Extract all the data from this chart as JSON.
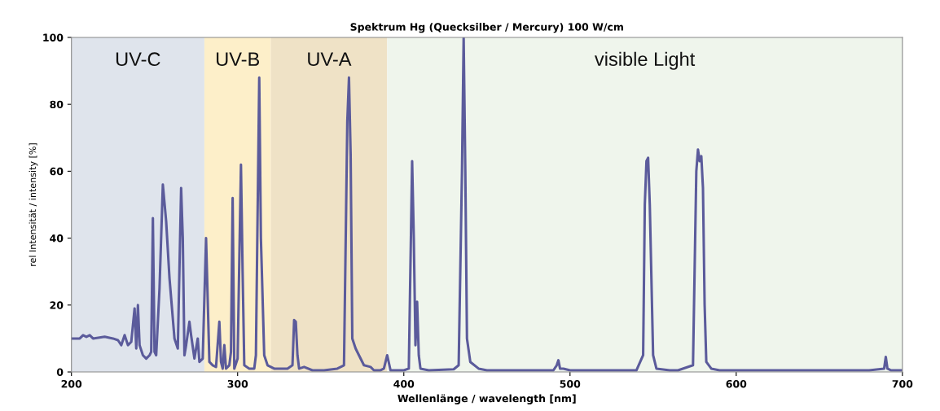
{
  "chart_data": {
    "type": "line",
    "title": "Spektrum Hg (Quecksilber / Mercury) 100 W/cm",
    "xlabel": "Wellenlänge / wavelength [nm]",
    "ylabel": "rel Intensität / intensity [%]",
    "xlim": [
      200,
      700
    ],
    "xticks": [
      200,
      300,
      400,
      500,
      600,
      700
    ],
    "ylim": [
      0,
      100
    ],
    "yticks": [
      0,
      20,
      40,
      60,
      80,
      100
    ],
    "grid": false,
    "legend": false,
    "marker": "none",
    "line_style": "solid",
    "bands": [
      {
        "axis": "x",
        "from": 200,
        "to": 280,
        "label": "UV-C",
        "color": "#dfe4ec"
      },
      {
        "axis": "x",
        "from": 280,
        "to": 320,
        "label": "UV-B",
        "color": "#fdefc9"
      },
      {
        "axis": "x",
        "from": 320,
        "to": 390,
        "label": "UV-A",
        "color": "#efe2c6"
      },
      {
        "axis": "x",
        "from": 390,
        "to": 700,
        "label": "visible Light",
        "color": "#eff5ec"
      }
    ],
    "series": [
      {
        "color": "#5b5b9b",
        "x": [
          200,
          205,
          207,
          209,
          211,
          213,
          220,
          225,
          228,
          230,
          232,
          234,
          236,
          238,
          239,
          240,
          241,
          243,
          245,
          247,
          248,
          249,
          250,
          251,
          253,
          255,
          257,
          259,
          262,
          264,
          266,
          267,
          268,
          269,
          271,
          272,
          274,
          276,
          277,
          279,
          281,
          283,
          285,
          287,
          289,
          290,
          291,
          292,
          293,
          295,
          296,
          297,
          298,
          300,
          302,
          303,
          304,
          307,
          310,
          311,
          313,
          314,
          316,
          318,
          322,
          330,
          333,
          334,
          335,
          336,
          337,
          340,
          345,
          352,
          360,
          364,
          366,
          367,
          368,
          369,
          371,
          373,
          376,
          380,
          382,
          386,
          388,
          390,
          392,
          400,
          403,
          405,
          406,
          407,
          408,
          409,
          410,
          415,
          430,
          433,
          435,
          436,
          437,
          438,
          440,
          445,
          450,
          490,
          492,
          493,
          494,
          496,
          500,
          540,
          544,
          545,
          546,
          547,
          548,
          550,
          552,
          560,
          565,
          574,
          576,
          577,
          578,
          579,
          580,
          581,
          582,
          585,
          590,
          625,
          680,
          689,
          690,
          691,
          693,
          700
        ],
        "values": [
          10,
          10,
          11,
          10.5,
          11,
          10,
          10.5,
          10,
          9.5,
          8,
          11,
          8,
          9,
          19,
          7,
          20,
          8,
          5,
          4,
          5,
          6,
          46,
          6,
          5,
          25,
          56,
          45,
          28,
          10,
          7,
          55,
          40,
          5,
          8,
          15,
          11,
          4,
          10,
          3,
          4,
          40,
          3,
          2,
          1.5,
          15,
          3,
          1,
          8,
          1,
          2,
          6,
          52,
          1,
          4,
          62,
          30,
          2,
          1,
          1,
          5,
          88,
          40,
          5,
          2,
          1,
          1,
          2,
          15.5,
          15,
          5,
          1,
          1.5,
          0.5,
          0.5,
          1,
          2,
          75,
          88,
          65,
          10,
          7,
          5,
          2,
          1.5,
          0.5,
          0.5,
          1,
          5,
          0.5,
          0.5,
          1,
          63,
          40,
          8,
          21,
          5,
          1,
          0.5,
          0.8,
          2,
          60,
          100,
          60,
          10,
          3,
          1,
          0.5,
          0.5,
          2,
          3.5,
          1,
          1,
          0.5,
          0.5,
          5,
          50,
          63,
          64,
          50,
          5,
          1,
          0.5,
          0.5,
          2,
          60,
          66.5,
          63,
          64.5,
          55,
          20,
          3,
          1,
          0.5,
          0.5,
          0.5,
          1,
          4.5,
          1,
          0.5,
          0.5
        ]
      }
    ]
  }
}
